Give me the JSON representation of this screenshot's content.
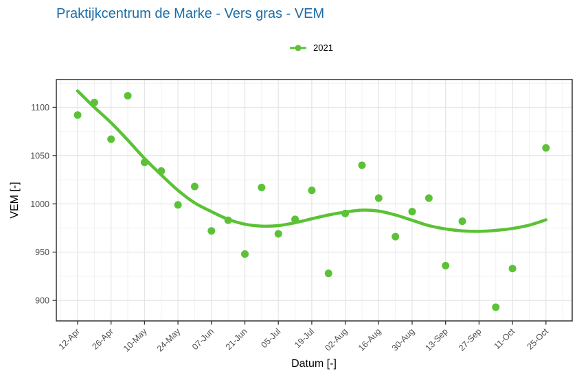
{
  "chart_data": {
    "type": "scatter",
    "title": "Praktijkcentrum de Marke - Vers gras - VEM",
    "xlabel": "Datum [-]",
    "ylabel": "VEM [-]",
    "legend_position": "top-center",
    "grid": true,
    "x_tick_labels": [
      "12-Apr",
      "26-Apr",
      "10-May",
      "24-May",
      "07-Jun",
      "21-Jun",
      "05-Jul",
      "19-Jul",
      "02-Aug",
      "16-Aug",
      "30-Aug",
      "13-Sep",
      "27-Sep",
      "11-Oct",
      "25-Oct"
    ],
    "x_tick_interval_days": 14,
    "y_ticks": [
      900,
      950,
      1000,
      1050,
      1100
    ],
    "y_minor_ticks": [
      925,
      975,
      1025,
      1075,
      1125
    ],
    "ylim": [
      879,
      1129
    ],
    "series": [
      {
        "name": "2021",
        "color": "#5bc236",
        "points": [
          {
            "date": "12-Apr",
            "day": 0,
            "value": 1092
          },
          {
            "date": "19-Apr",
            "day": 7,
            "value": 1105
          },
          {
            "date": "26-Apr",
            "day": 14,
            "value": 1067
          },
          {
            "date": "03-May",
            "day": 21,
            "value": 1112
          },
          {
            "date": "10-May",
            "day": 28,
            "value": 1043
          },
          {
            "date": "17-May",
            "day": 35,
            "value": 1034
          },
          {
            "date": "24-May",
            "day": 42,
            "value": 999
          },
          {
            "date": "31-May",
            "day": 49,
            "value": 1018
          },
          {
            "date": "07-Jun",
            "day": 56,
            "value": 972
          },
          {
            "date": "14-Jun",
            "day": 63,
            "value": 983
          },
          {
            "date": "21-Jun",
            "day": 70,
            "value": 948
          },
          {
            "date": "28-Jun",
            "day": 77,
            "value": 1017
          },
          {
            "date": "05-Jul",
            "day": 84,
            "value": 969
          },
          {
            "date": "12-Jul",
            "day": 91,
            "value": 984
          },
          {
            "date": "19-Jul",
            "day": 98,
            "value": 1014
          },
          {
            "date": "26-Jul",
            "day": 105,
            "value": 928
          },
          {
            "date": "02-Aug",
            "day": 112,
            "value": 990
          },
          {
            "date": "09-Aug",
            "day": 119,
            "value": 1040
          },
          {
            "date": "16-Aug",
            "day": 126,
            "value": 1006
          },
          {
            "date": "23-Aug",
            "day": 133,
            "value": 966
          },
          {
            "date": "30-Aug",
            "day": 140,
            "value": 992
          },
          {
            "date": "06-Sep",
            "day": 147,
            "value": 1006
          },
          {
            "date": "13-Sep",
            "day": 154,
            "value": 936
          },
          {
            "date": "20-Sep",
            "day": 161,
            "value": 982
          },
          {
            "date": "04-Oct",
            "day": 175,
            "value": 893
          },
          {
            "date": "11-Oct",
            "day": 182,
            "value": 933
          },
          {
            "date": "25-Oct",
            "day": 196,
            "value": 1058
          }
        ],
        "smooth_line": [
          [
            0,
            1117
          ],
          [
            7,
            1100
          ],
          [
            14,
            1084
          ],
          [
            21,
            1066
          ],
          [
            28,
            1047
          ],
          [
            35,
            1030
          ],
          [
            42,
            1014
          ],
          [
            49,
            1001
          ],
          [
            56,
            992
          ],
          [
            63,
            984
          ],
          [
            70,
            979
          ],
          [
            77,
            977
          ],
          [
            84,
            977.5
          ],
          [
            91,
            980.5
          ],
          [
            98,
            984.5
          ],
          [
            105,
            988.5
          ],
          [
            112,
            991.5
          ],
          [
            119,
            993.5
          ],
          [
            126,
            992.5
          ],
          [
            133,
            988.5
          ],
          [
            140,
            983
          ],
          [
            147,
            977.5
          ],
          [
            154,
            974
          ],
          [
            161,
            972
          ],
          [
            168,
            971.5
          ],
          [
            175,
            972.5
          ],
          [
            182,
            974.5
          ],
          [
            189,
            978
          ],
          [
            196,
            983.5
          ]
        ]
      }
    ]
  },
  "colors": {
    "title": "#1a6ca8",
    "series_green": "#5bc236",
    "tick_label": "#4d4d4d",
    "axis_title": "#000000",
    "panel_border": "#333333",
    "grid_major": "#e4e4e4",
    "grid_minor": "#f1f1f1",
    "panel_background": "#ffffff"
  }
}
